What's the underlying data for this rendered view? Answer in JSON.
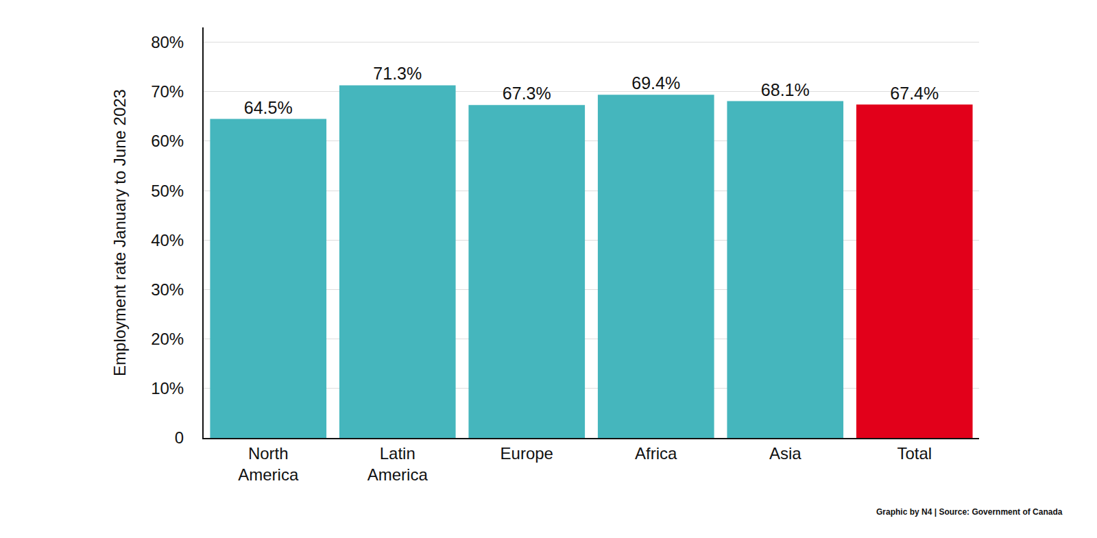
{
  "chart_data": {
    "type": "bar",
    "y_label": "Employment rate January to June 2023",
    "categories": [
      "North America",
      "Latin America",
      "Europe",
      "Africa",
      "Asia",
      "Total"
    ],
    "values": [
      64.5,
      71.3,
      67.3,
      69.4,
      68.1,
      67.4
    ],
    "value_labels": [
      "64.5%",
      "71.3%",
      "67.3%",
      "69.4%",
      "68.1%",
      "67.4%"
    ],
    "colors": [
      "#45b6bd",
      "#45b6bd",
      "#45b6bd",
      "#45b6bd",
      "#45b6bd",
      "#e2001a"
    ],
    "ylim": [
      0,
      83
    ],
    "yticks": [
      0,
      {
        "value": 10,
        "label": "10%"
      },
      {
        "value": 20,
        "label": "20%"
      },
      {
        "value": 30,
        "label": "30%"
      },
      {
        "value": 40,
        "label": "40%"
      },
      {
        "value": 50,
        "label": "50%"
      },
      {
        "value": 60,
        "label": "60%"
      },
      {
        "value": 70,
        "label": "70%"
      },
      {
        "value": 80,
        "label": "80%"
      }
    ],
    "grid": true,
    "data_labels": true,
    "source": "Graphic by N4 | Source: Government of Canada"
  }
}
